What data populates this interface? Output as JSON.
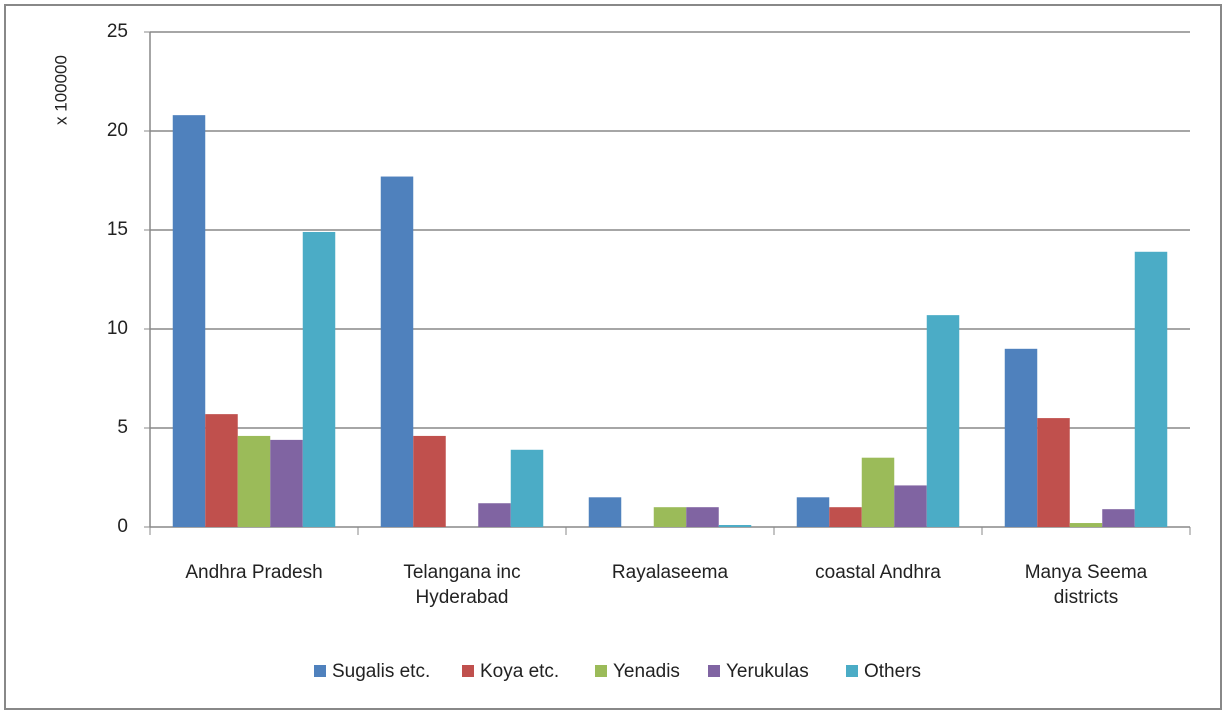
{
  "chart_data": {
    "type": "bar",
    "y_axis_label": "x 100000",
    "categories": [
      "Andhra Pradesh",
      "Telangana inc Hyderabad",
      "Rayalaseema",
      "coastal Andhra",
      "Manya Seema districts"
    ],
    "series": [
      {
        "name": "Sugalis etc.",
        "color": "#4f81bd",
        "values": [
          20.8,
          17.7,
          1.5,
          1.5,
          9.0
        ]
      },
      {
        "name": "Koya etc.",
        "color": "#c0504d",
        "values": [
          5.7,
          4.6,
          0,
          1.0,
          5.5
        ]
      },
      {
        "name": "Yenadis",
        "color": "#9bbb59",
        "values": [
          4.6,
          0,
          1.0,
          3.5,
          0.2
        ]
      },
      {
        "name": "Yerukulas",
        "color": "#8064a2",
        "values": [
          4.4,
          1.2,
          1.0,
          2.1,
          0.9
        ]
      },
      {
        "name": "Others",
        "color": "#4bacc6",
        "values": [
          14.9,
          3.9,
          0.1,
          10.7,
          13.9
        ]
      }
    ],
    "ylim": [
      0,
      25
    ],
    "yticks": [
      0,
      5,
      10,
      15,
      20,
      25
    ],
    "grid": true,
    "legend": "bottom"
  }
}
